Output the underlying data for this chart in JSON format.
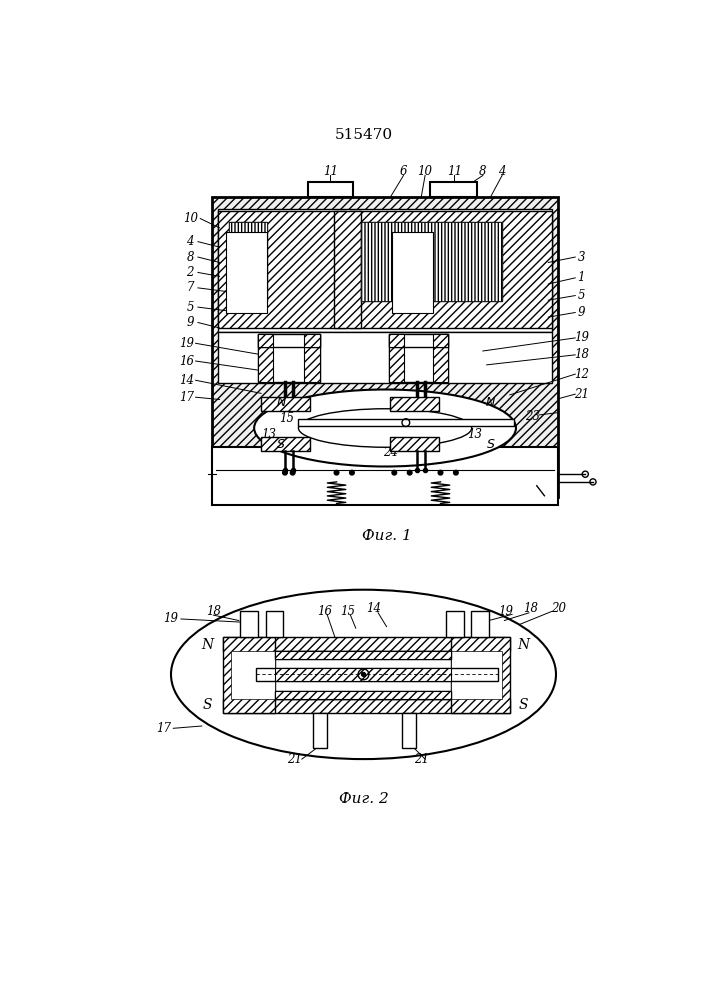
{
  "title": "515470",
  "fig1_label": "Фиг. 1",
  "fig2_label": "Фиг. 2",
  "bg_color": "#ffffff"
}
